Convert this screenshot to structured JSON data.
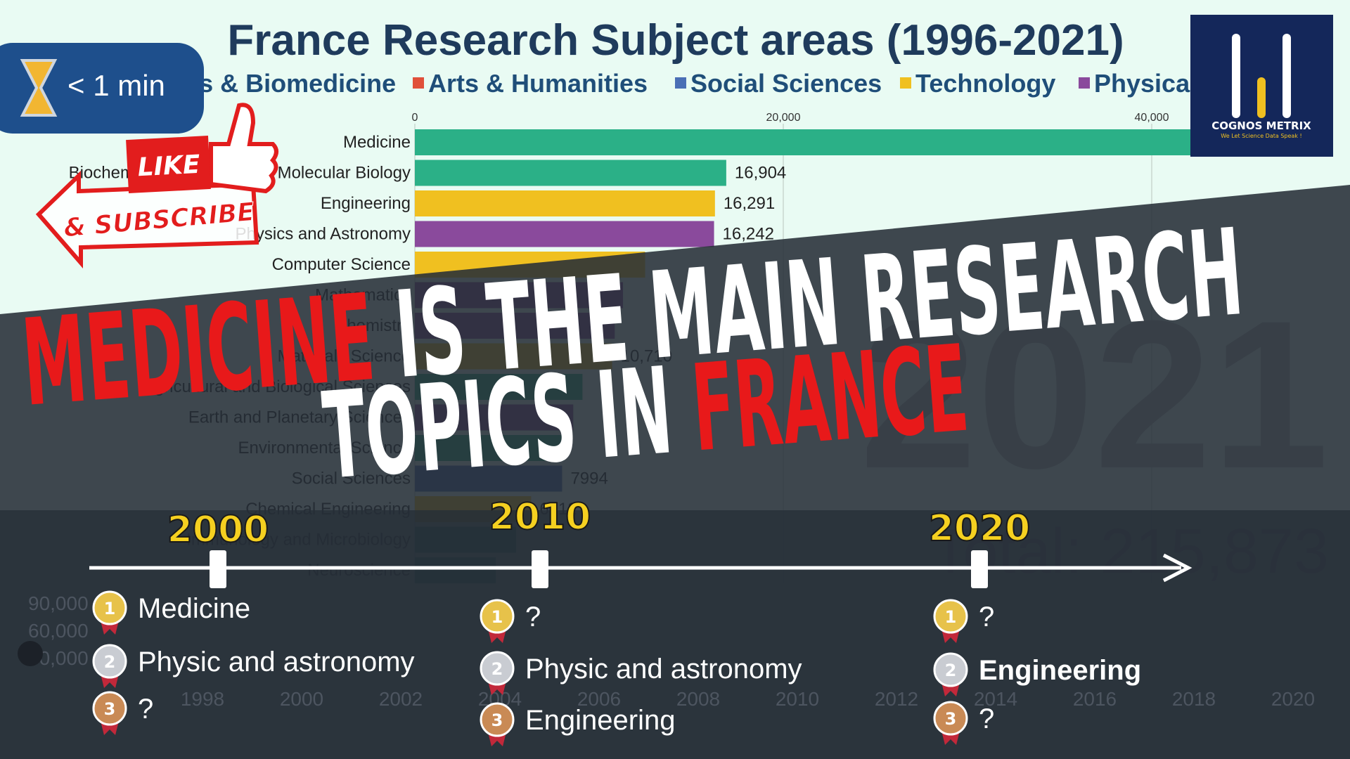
{
  "background_chart": {
    "title": "France Research Subject areas (1996-2021)",
    "legend": [
      {
        "name": "Life Sciences & Biomedicine",
        "color": "#2bb087"
      },
      {
        "name": "Arts & Humanities",
        "color": "#e0503a"
      },
      {
        "name": "Social Sciences",
        "color": "#4a6fb5"
      },
      {
        "name": "Technology",
        "color": "#f0c020"
      },
      {
        "name": "Physical Sciences",
        "color": "#8a4a9c"
      }
    ],
    "xlim": [
      0,
      40000
    ],
    "xticks": [
      0,
      {
        "value": 20000,
        "label": "20,000"
      },
      {
        "value": 40000,
        "label": "40,000"
      }
    ],
    "categories": [
      "Medicine",
      "Biochemistry, Genetics and Molecular Biology",
      "Engineering",
      "Physics and Astronomy",
      "Computer Science",
      "Mathematics",
      "Chemistry",
      "Materials Science",
      "Agricultural and Biological Sciences",
      "Earth and Planetary Sciences",
      "Environmental Science",
      "Social Sciences",
      "Chemical Engineering",
      "Immunology and Microbiology",
      "Neuroscience"
    ],
    "values": [
      43000,
      16904,
      16291,
      16242,
      12500,
      11300,
      10850,
      10710,
      9100,
      8600,
      8100,
      7994,
      6312,
      5500,
      4400
    ],
    "value_labels": [
      null,
      "16,904",
      "16,291",
      "16,242",
      null,
      null,
      null,
      "10,710",
      null,
      null,
      null,
      "7994",
      "6312",
      null,
      null
    ],
    "colors": [
      "#2bb087",
      "#2bb087",
      "#f0c020",
      "#8a4a9c",
      "#f0c020",
      "#8a4a9c",
      "#8a4a9c",
      "#f0c020",
      "#2bb087",
      "#8a4a9c",
      "#2bb087",
      "#4a6fb5",
      "#f0c020",
      "#2bb087",
      "#2bb087"
    ],
    "year": "2021",
    "total": "Total: 215,873",
    "trend_y_ticks": [
      "90,000",
      "60,000",
      "30,000"
    ],
    "trend_x_ticks": [
      "1998",
      "2000",
      "2002",
      "2004",
      "2006",
      "2008",
      "2010",
      "2012",
      "2014",
      "2016",
      "2018",
      "2020"
    ]
  },
  "badge": {
    "duration": "< 1 min"
  },
  "promo": {
    "like": "LIKE",
    "subscribe": "& SUBSCRIBE"
  },
  "logo": {
    "name": "COGNOS METRIX",
    "tagline": "We Let Science Data Speak !"
  },
  "headline": {
    "line1": [
      {
        "text": "MEDICINE",
        "color": "#e8191a"
      },
      {
        "text": " IS THE MAIN RESEARCH",
        "color": "#ffffff"
      }
    ],
    "line2": [
      {
        "text": "TOPICS IN ",
        "color": "#ffffff"
      },
      {
        "text": "FRANCE",
        "color": "#e8191a"
      }
    ]
  },
  "timeline": [
    {
      "year": "2000",
      "ranks": [
        {
          "medal": "1",
          "label": "Medicine"
        },
        {
          "medal": "2",
          "label": "Physic and astronomy"
        },
        {
          "medal": "3",
          "label": "?"
        }
      ]
    },
    {
      "year": "2010",
      "ranks": [
        {
          "medal": "1",
          "label": "?"
        },
        {
          "medal": "2",
          "label": "Physic and astronomy"
        },
        {
          "medal": "3",
          "label": "Engineering"
        }
      ]
    },
    {
      "year": "2020",
      "ranks": [
        {
          "medal": "1",
          "label": "?"
        },
        {
          "medal": "2",
          "label": "Engineering"
        },
        {
          "medal": "3",
          "label": "?"
        }
      ]
    }
  ]
}
